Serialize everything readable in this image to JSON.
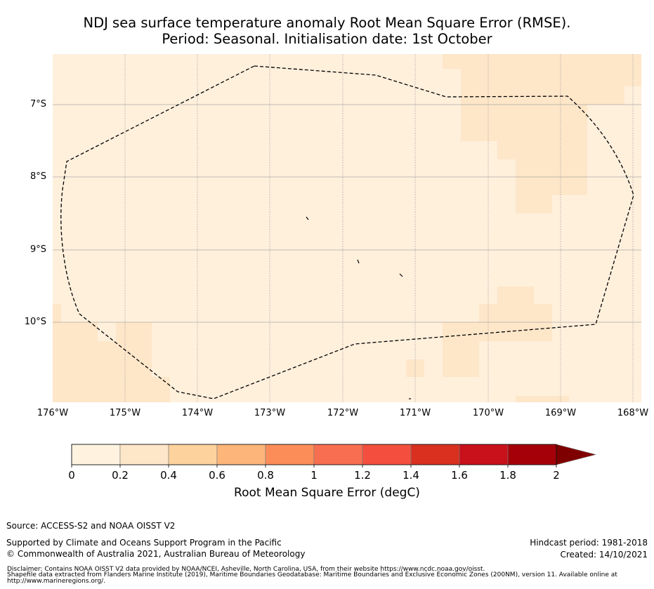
{
  "title": {
    "line1": "NDJ sea surface temperature anomaly Root Mean Square Error (RMSE).",
    "line2": "Period: Seasonal. Initialisation date: 1st October"
  },
  "map": {
    "lat_labels": [
      "7°S",
      "8°S",
      "9°S",
      "10°S"
    ],
    "lon_labels": [
      "176°W",
      "175°W",
      "174°W",
      "173°W",
      "172°W",
      "171°W",
      "170°W",
      "169°W",
      "168°W"
    ],
    "lon_range": [
      -176,
      -168
    ],
    "lat_range": [
      -6.3,
      -11.1
    ],
    "boundary_label": "Maritime boundary (EEZ)"
  },
  "colorbar": {
    "label": "Root Mean Square Error (degC)",
    "ticks": [
      "0",
      "0.2",
      "0.4",
      "0.6",
      "0.8",
      "1",
      "1.2",
      "1.4",
      "1.6",
      "1.8",
      "2"
    ],
    "colors": [
      "#fff3e0",
      "#fee6c9",
      "#fdd29d",
      "#fdb57a",
      "#fc8d59",
      "#f86e50",
      "#f44f3e",
      "#d9301f",
      "#c8111a",
      "#a50009",
      "#7f0000"
    ],
    "extend": "max"
  },
  "footer": {
    "source": "Source: ACCESS-S2 and NOAA OISST V2",
    "supported": "Supported by Climate and Oceans Support Program in the Pacific",
    "copyright": "© Commonwealth of Australia 2021, Australian Bureau of Meteorology",
    "hindcast": "Hindcast period: 1981-2018",
    "created": "Created: 14/10/2021",
    "disclaimer1": "Disclaimer: Contains NOAA OISST V2 data provided by NOAA/NCEI, Asheville, North Carolina, USA, from their website https://www.ncdc.noaa.gov/oisst.",
    "disclaimer2": "Shapefile data extracted from Flanders Marine Institute (2019), Maritime Boundaries Geodatabase: Maritime Boundaries and Exclusive Economic Zones (200NM), version 11. Available online at",
    "disclaimer3": "http://www.marineregions.org/."
  }
}
